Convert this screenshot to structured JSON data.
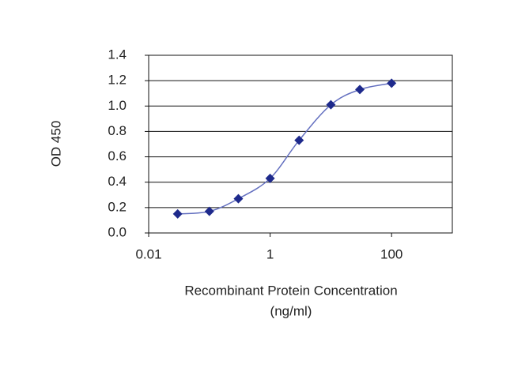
{
  "chart_data": {
    "type": "line",
    "y_label": "OD 450",
    "x_label_lines": [
      "Recombinant Protein Concentration",
      "(ng/ml)"
    ],
    "x": [
      0.03,
      0.1,
      0.3,
      1,
      3,
      10,
      30,
      100
    ],
    "series": [
      {
        "color": "#1e2a8c",
        "line_color": "#6470c0",
        "values": [
          0.15,
          0.17,
          0.27,
          0.43,
          0.73,
          1.01,
          1.13,
          1.18
        ]
      }
    ],
    "xscale": "log",
    "xlim": [
      0.01,
      1000
    ],
    "xticks": [
      0.01,
      1,
      100
    ],
    "ylim": [
      0,
      1.4
    ],
    "yticks": [
      {
        "value": 0,
        "label": "0.0"
      },
      {
        "value": 0.2,
        "label": "0.2"
      },
      {
        "value": 0.4,
        "label": "0.4"
      },
      {
        "value": 0.6,
        "label": "0.6"
      },
      {
        "value": 0.8,
        "label": "0.8"
      },
      {
        "value": 1.0,
        "label": "1.0"
      },
      {
        "value": 1.2,
        "label": "1.2"
      },
      {
        "value": 1.4,
        "label": "1.4"
      }
    ],
    "grid": true
  }
}
